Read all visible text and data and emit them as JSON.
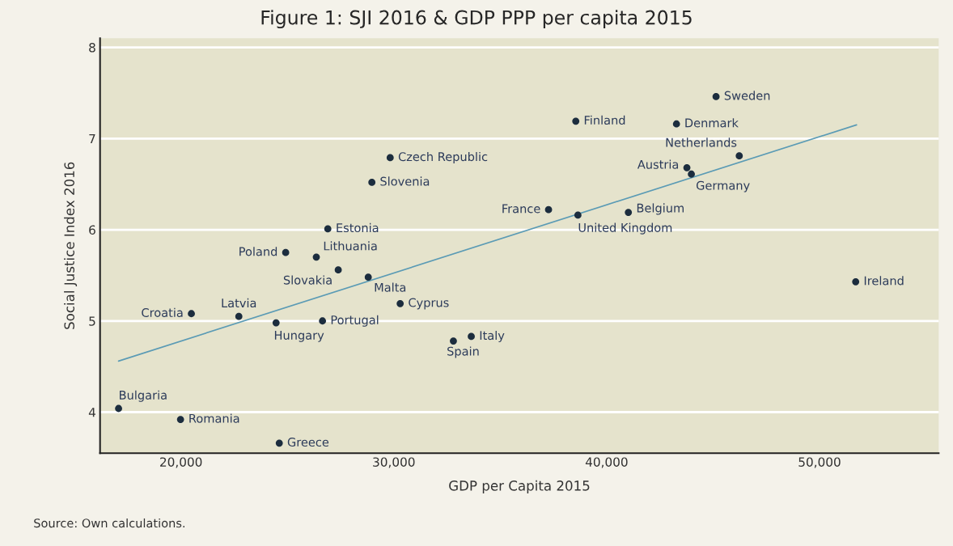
{
  "chart_data": {
    "type": "scatter",
    "title": "Figure 1: SJI 2016 & GDP PPP per capita 2015",
    "xlabel": "GDP per Capita 2015",
    "ylabel": "Social Justice Index 2016",
    "xlim": [
      16200,
      55600
    ],
    "ylim": [
      3.55,
      8.1
    ],
    "xticks": [
      {
        "value": 20000,
        "label": "20,000"
      },
      {
        "value": 30000,
        "label": "30,000"
      },
      {
        "value": 40000,
        "label": "40,000"
      },
      {
        "value": 50000,
        "label": "50,000"
      }
    ],
    "yticks": [
      4,
      5,
      6,
      7,
      8
    ],
    "grid": "y",
    "series": [
      {
        "marker": "circle",
        "color": "#1c2d3e",
        "x": [
          29830,
          28970,
          26900,
          24920,
          26360,
          27390,
          28800,
          20490,
          22720,
          24470,
          26650,
          30300,
          32800,
          33640,
          17070,
          19980,
          24620,
          45140,
          38550,
          43280,
          46230,
          43770,
          43980,
          37270,
          38650,
          41020,
          51700
        ],
        "values": [
          6.79,
          6.52,
          6.01,
          5.75,
          5.7,
          5.56,
          5.48,
          5.08,
          5.05,
          4.98,
          5.0,
          5.19,
          4.78,
          4.83,
          4.04,
          3.92,
          3.66,
          7.46,
          7.19,
          7.16,
          6.81,
          6.68,
          6.61,
          6.22,
          6.16,
          6.19,
          5.43
        ]
      },
      {
        "type": "line",
        "color": "#5b9bb5",
        "x": [
          17070,
          51740
        ],
        "values": [
          4.56,
          7.15
        ]
      }
    ],
    "annotations": [
      {
        "text": "Czech Republic",
        "x": 29830,
        "y": 6.79
      },
      {
        "text": "Slovenia",
        "x": 28970,
        "y": 6.52
      },
      {
        "text": "Estonia",
        "x": 26900,
        "y": 6.01
      },
      {
        "text": "Poland",
        "x": 24920,
        "y": 5.75
      },
      {
        "text": "Lithuania",
        "x": 26360,
        "y": 5.7
      },
      {
        "text": "Slovakia",
        "x": 27390,
        "y": 5.56
      },
      {
        "text": "Malta",
        "x": 28800,
        "y": 5.48
      },
      {
        "text": "Croatia",
        "x": 20490,
        "y": 5.08
      },
      {
        "text": "Latvia",
        "x": 22720,
        "y": 5.05
      },
      {
        "text": "Hungary",
        "x": 24470,
        "y": 4.98
      },
      {
        "text": "Portugal",
        "x": 26650,
        "y": 5.0
      },
      {
        "text": "Cyprus",
        "x": 30300,
        "y": 5.19
      },
      {
        "text": "Spain",
        "x": 32800,
        "y": 4.78
      },
      {
        "text": "Italy",
        "x": 33640,
        "y": 4.83
      },
      {
        "text": "Bulgaria",
        "x": 17070,
        "y": 4.04
      },
      {
        "text": "Romania",
        "x": 19980,
        "y": 3.92
      },
      {
        "text": "Greece",
        "x": 24620,
        "y": 3.66
      },
      {
        "text": "Sweden",
        "x": 45140,
        "y": 7.46
      },
      {
        "text": "Finland",
        "x": 38550,
        "y": 7.19
      },
      {
        "text": "Denmark",
        "x": 43280,
        "y": 7.16
      },
      {
        "text": "Netherlands",
        "x": 46230,
        "y": 6.81
      },
      {
        "text": "Austria",
        "x": 43770,
        "y": 6.68
      },
      {
        "text": "Germany",
        "x": 43980,
        "y": 6.61
      },
      {
        "text": "France",
        "x": 37270,
        "y": 6.22
      },
      {
        "text": "United Kingdom",
        "x": 38650,
        "y": 6.16
      },
      {
        "text": "Belgium",
        "x": 41020,
        "y": 6.19
      },
      {
        "text": "Ireland",
        "x": 51700,
        "y": 5.43
      },
      "Source: Own calculations."
    ]
  }
}
